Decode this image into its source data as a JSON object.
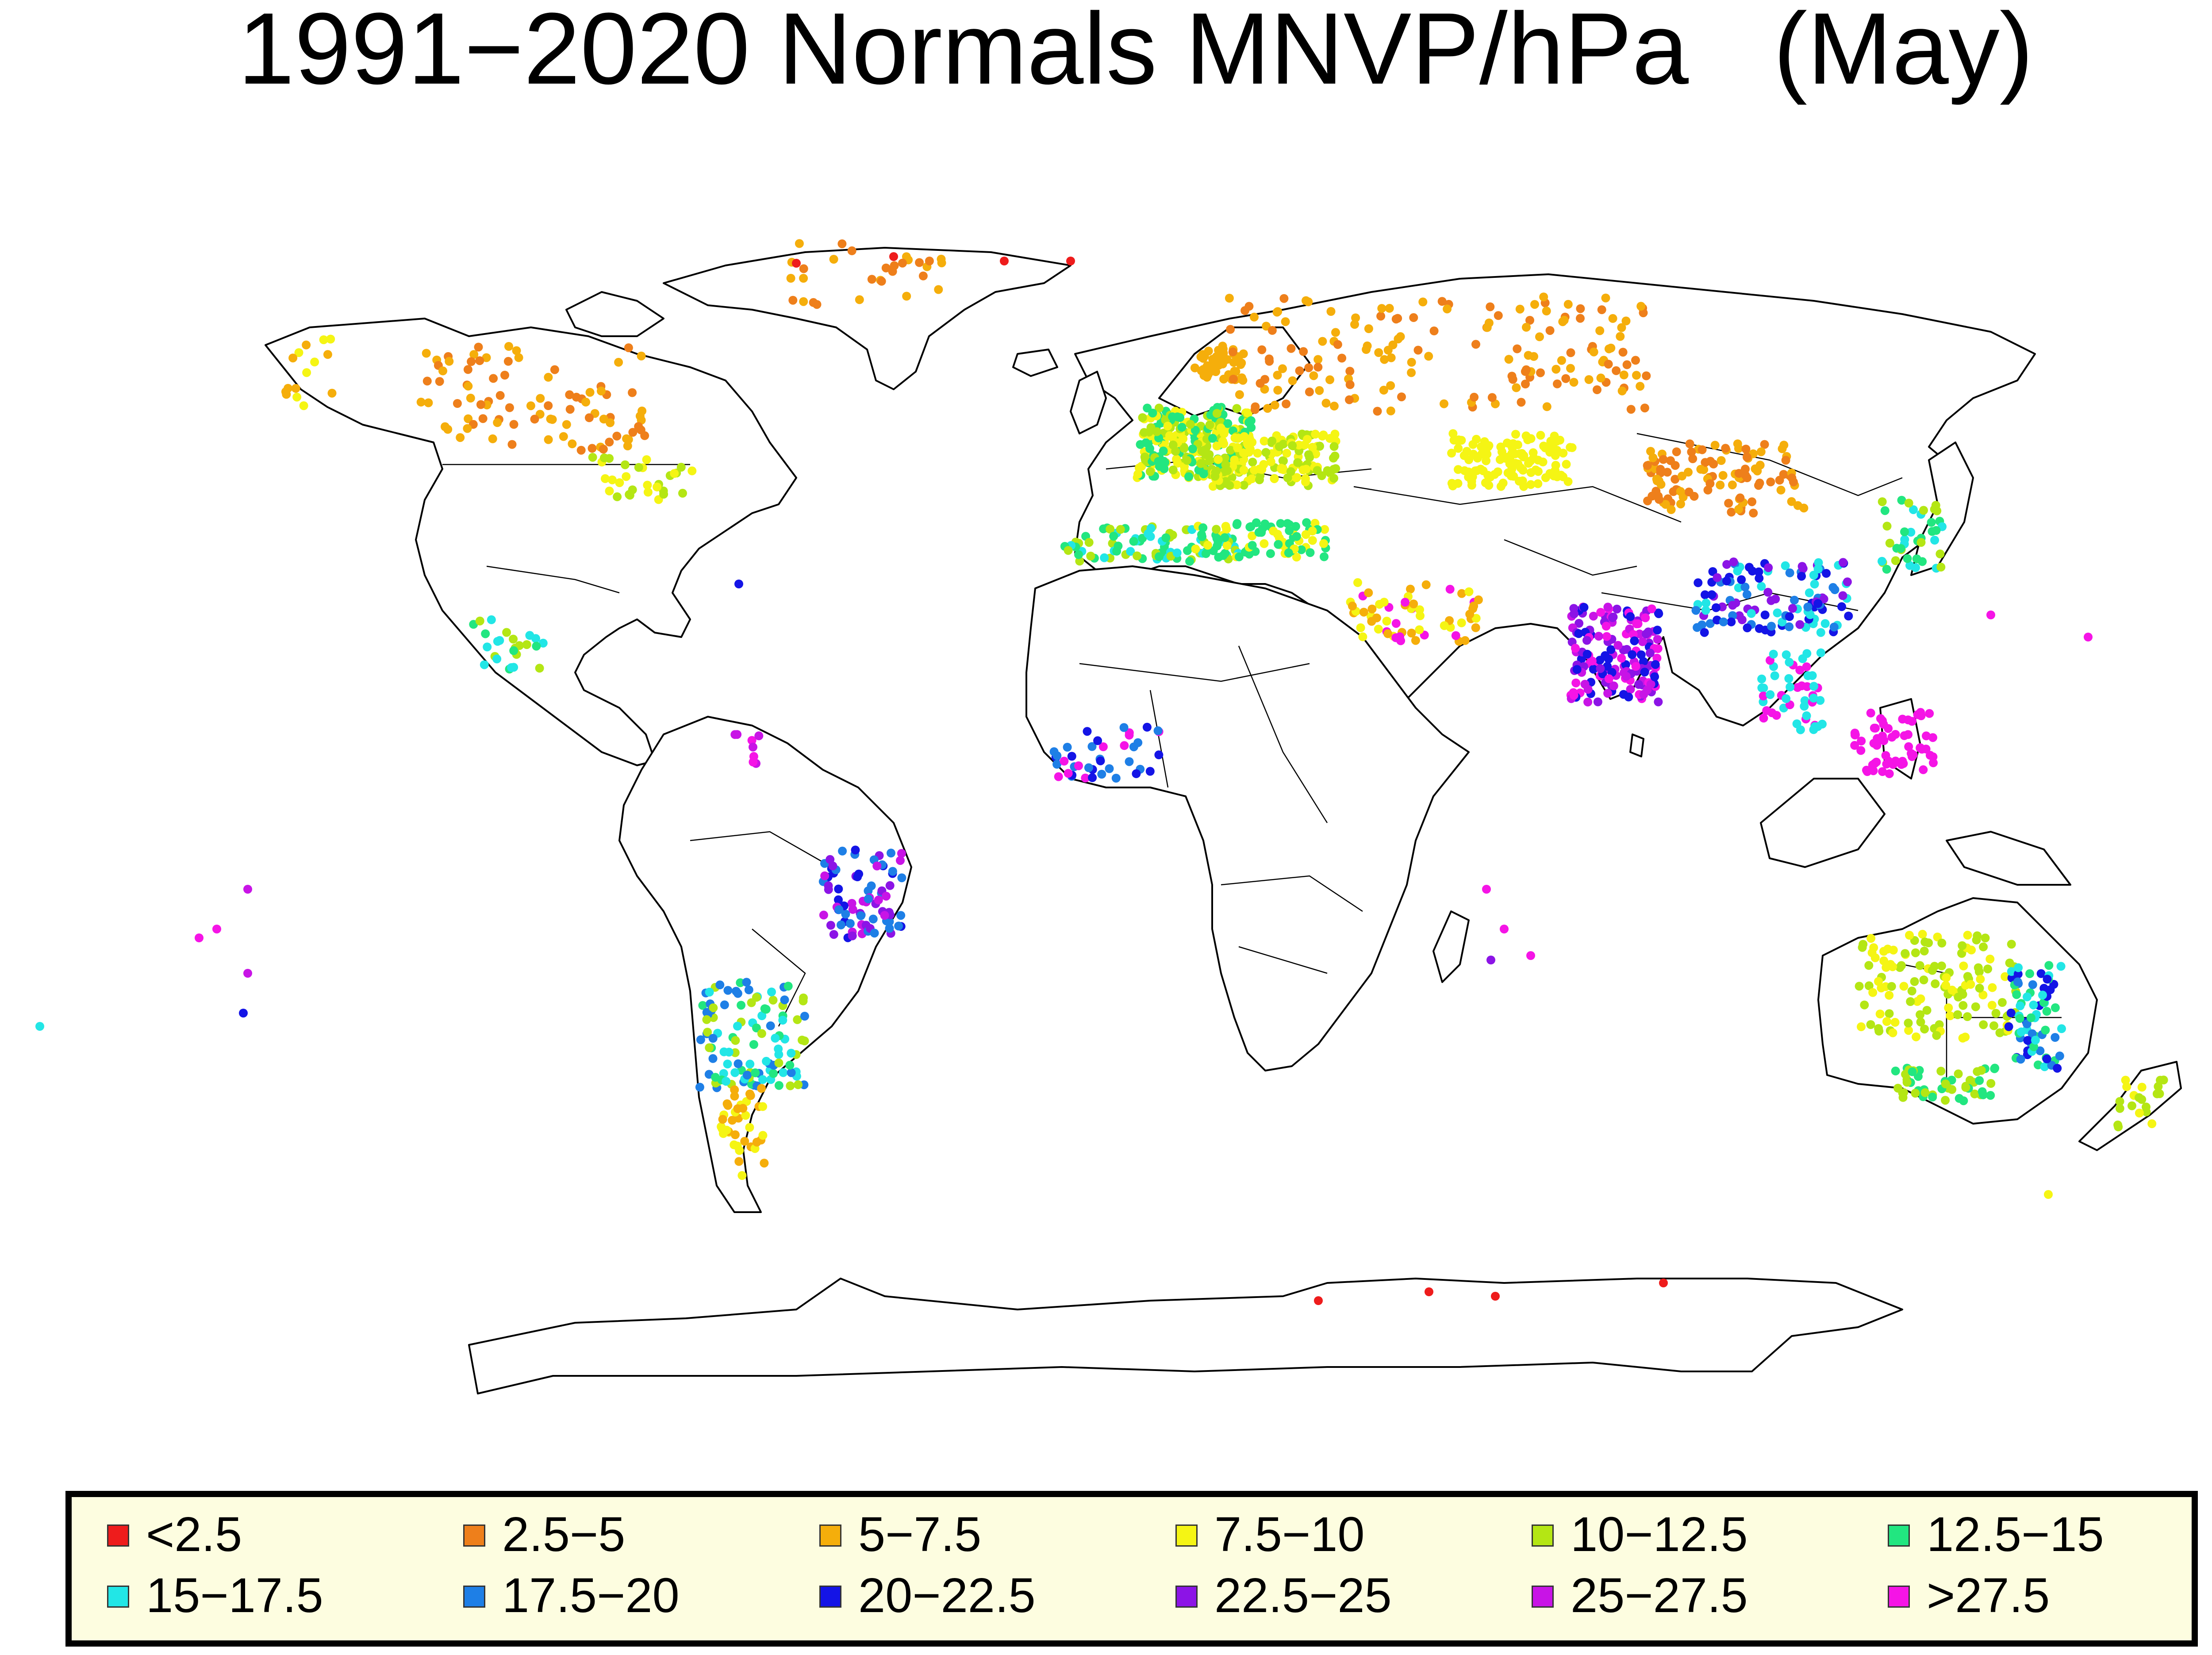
{
  "title": "1991−2020 Normals MNVP/hPa   (May)",
  "legend": [
    {
      "label": "<2.5",
      "color": "#ee1c1c"
    },
    {
      "label": "2.5−5",
      "color": "#ee7f1b"
    },
    {
      "label": "5−7.5",
      "color": "#f5ae0b"
    },
    {
      "label": "7.5−10",
      "color": "#f5f514"
    },
    {
      "label": "10−12.5",
      "color": "#b4e614"
    },
    {
      "label": "12.5−15",
      "color": "#22e680"
    },
    {
      "label": "15−17.5",
      "color": "#22e6e6"
    },
    {
      "label": "17.5−20",
      "color": "#1e7fe6"
    },
    {
      "label": "20−22.5",
      "color": "#1414e6"
    },
    {
      "label": "22.5−25",
      "color": "#8c14e6"
    },
    {
      "label": "25−27.5",
      "color": "#c814e6"
    },
    {
      "label": ">27.5",
      "color": "#f514e6"
    }
  ]
}
